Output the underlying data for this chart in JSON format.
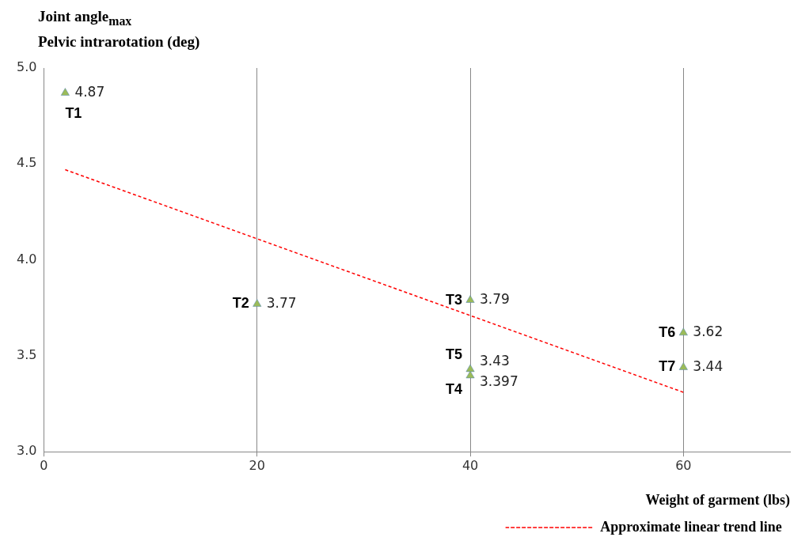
{
  "chart_data": {
    "type": "scatter",
    "ylabel": "Joint angle$_{max}$\nPelvic intrarotation (deg)",
    "xlabel": "Weight of garment (lbs)",
    "xlim": [
      0,
      70
    ],
    "xticks": [
      0,
      20,
      40,
      60
    ],
    "ylim": [
      3.0,
      5.0
    ],
    "yticks": [
      {
        "value": 3.0,
        "label": "3.0"
      },
      {
        "value": 3.5,
        "label": "3.5"
      },
      {
        "value": 4.0,
        "label": "4.0"
      },
      {
        "value": 4.5,
        "label": "4.5"
      },
      {
        "value": 5.0,
        "label": "5.0"
      }
    ],
    "grid": "x",
    "legend": "bottom right",
    "marker": "triangle",
    "series": [
      {
        "color": "#9bbb59",
        "x": [
          2,
          20,
          40,
          40,
          40,
          60,
          60
        ],
        "values": [
          4.87,
          3.77,
          3.79,
          3.397,
          3.43,
          3.62,
          3.44
        ],
        "value_labels": [
          "4.87",
          "3.77",
          "3.79",
          "3.397",
          "3.43",
          "3.62",
          "3.44"
        ]
      },
      {
        "type": "line",
        "name": "Approximate linear trend line",
        "color": "#ff0000",
        "line_style": "dashed",
        "marker": "none",
        "x": [
          2,
          60
        ],
        "values": [
          4.47,
          3.31
        ]
      }
    ],
    "annotations": [
      {
        "text": "T1",
        "x": 2,
        "y": 4.87
      },
      {
        "text": "T2",
        "x": 20,
        "y": 3.77
      },
      {
        "text": "T3",
        "x": 40,
        "y": 3.79
      },
      {
        "text": "T4",
        "x": 40,
        "y": 3.397
      },
      {
        "text": "T5",
        "x": 40,
        "y": 3.43
      },
      {
        "text": "T6",
        "x": 60,
        "y": 3.62
      },
      {
        "text": "T7",
        "x": 60,
        "y": 3.44
      }
    ]
  }
}
